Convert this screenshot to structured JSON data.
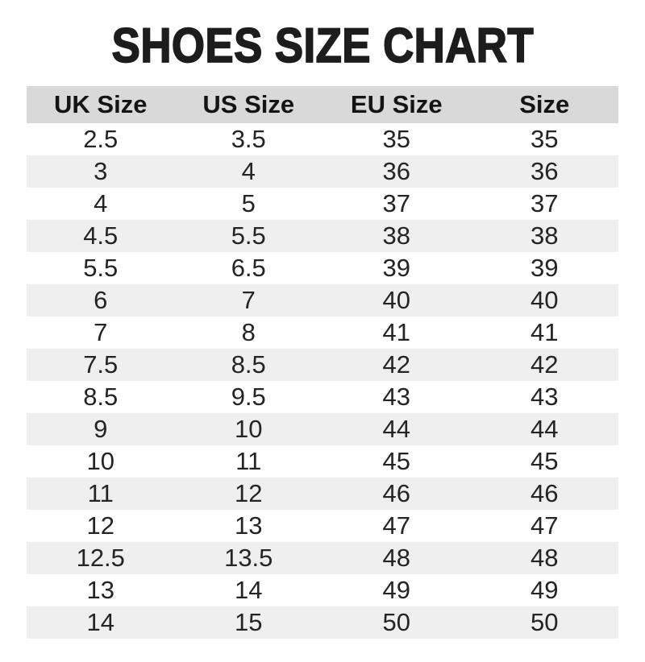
{
  "page": {
    "title": "SHOES SIZE CHART"
  },
  "chart_data": {
    "type": "table",
    "title": "SHOES SIZE CHART",
    "columns": [
      "UK Size",
      "US Size",
      "EU Size",
      "Size"
    ],
    "rows": [
      [
        "2.5",
        "3.5",
        "35",
        "35"
      ],
      [
        "3",
        "4",
        "36",
        "36"
      ],
      [
        "4",
        "5",
        "37",
        "37"
      ],
      [
        "4.5",
        "5.5",
        "38",
        "38"
      ],
      [
        "5.5",
        "6.5",
        "39",
        "39"
      ],
      [
        "6",
        "7",
        "40",
        "40"
      ],
      [
        "7",
        "8",
        "41",
        "41"
      ],
      [
        "7.5",
        "8.5",
        "42",
        "42"
      ],
      [
        "8.5",
        "9.5",
        "43",
        "43"
      ],
      [
        "9",
        "10",
        "44",
        "44"
      ],
      [
        "10",
        "11",
        "45",
        "45"
      ],
      [
        "11",
        "12",
        "46",
        "46"
      ],
      [
        "12",
        "13",
        "47",
        "47"
      ],
      [
        "12.5",
        "13.5",
        "48",
        "48"
      ],
      [
        "13",
        "14",
        "49",
        "49"
      ],
      [
        "14",
        "15",
        "50",
        "50"
      ]
    ],
    "layout": {
      "header_position": "top",
      "striped_rows": true,
      "stripe_pattern": "even-rows-gray",
      "column_alignment": "center"
    }
  },
  "colors": {
    "header_bg": "#d9d9d9",
    "row_alt_bg": "#efefef",
    "row_bg": "#ffffff",
    "text_color": "#242424",
    "title_color": "#1d1d1d"
  }
}
